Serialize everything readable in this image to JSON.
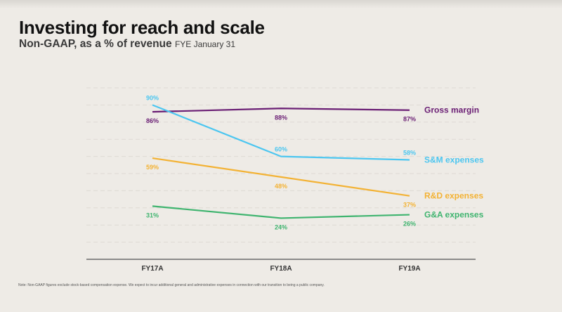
{
  "header": {
    "title": "Investing for reach and scale",
    "subtitle": "Non-GAAP, as a % of revenue",
    "subtitle_note": "FYE January 31"
  },
  "footer": {
    "note": "Note: Non-GAAP figures exclude stock-based compensation expense. We expect to incur additional general and administrative expenses in connection with our transition to being a public company."
  },
  "chart_data": {
    "type": "line",
    "title": "Investing for reach and scale",
    "subtitle": "Non-GAAP, as a % of revenue FYE January 31",
    "xlabel": "",
    "ylabel": "",
    "x": [
      "FY17A",
      "FY18A",
      "FY19A"
    ],
    "ylim": [
      0,
      100
    ],
    "y_grid_step": 10,
    "grid": true,
    "legend": "right, inline at line ends",
    "series": [
      {
        "name": "Gross margin",
        "color": "#6a1e74",
        "values": [
          86,
          88,
          87
        ],
        "labels": [
          "86%",
          "88%",
          "87%"
        ],
        "label_position": "below"
      },
      {
        "name": "S&M expenses",
        "color": "#4cc6f0",
        "values": [
          90,
          60,
          58
        ],
        "labels": [
          "90%",
          "60%",
          "58%"
        ],
        "label_position": "above"
      },
      {
        "name": "R&D expenses",
        "color": "#f3b234",
        "values": [
          59,
          48,
          37
        ],
        "labels": [
          "59%",
          "48%",
          "37%"
        ],
        "label_position": "below"
      },
      {
        "name": "G&A expenses",
        "color": "#3fb46f",
        "values": [
          31,
          24,
          26
        ],
        "labels": [
          "31%",
          "24%",
          "26%"
        ],
        "label_position": "below"
      }
    ]
  }
}
